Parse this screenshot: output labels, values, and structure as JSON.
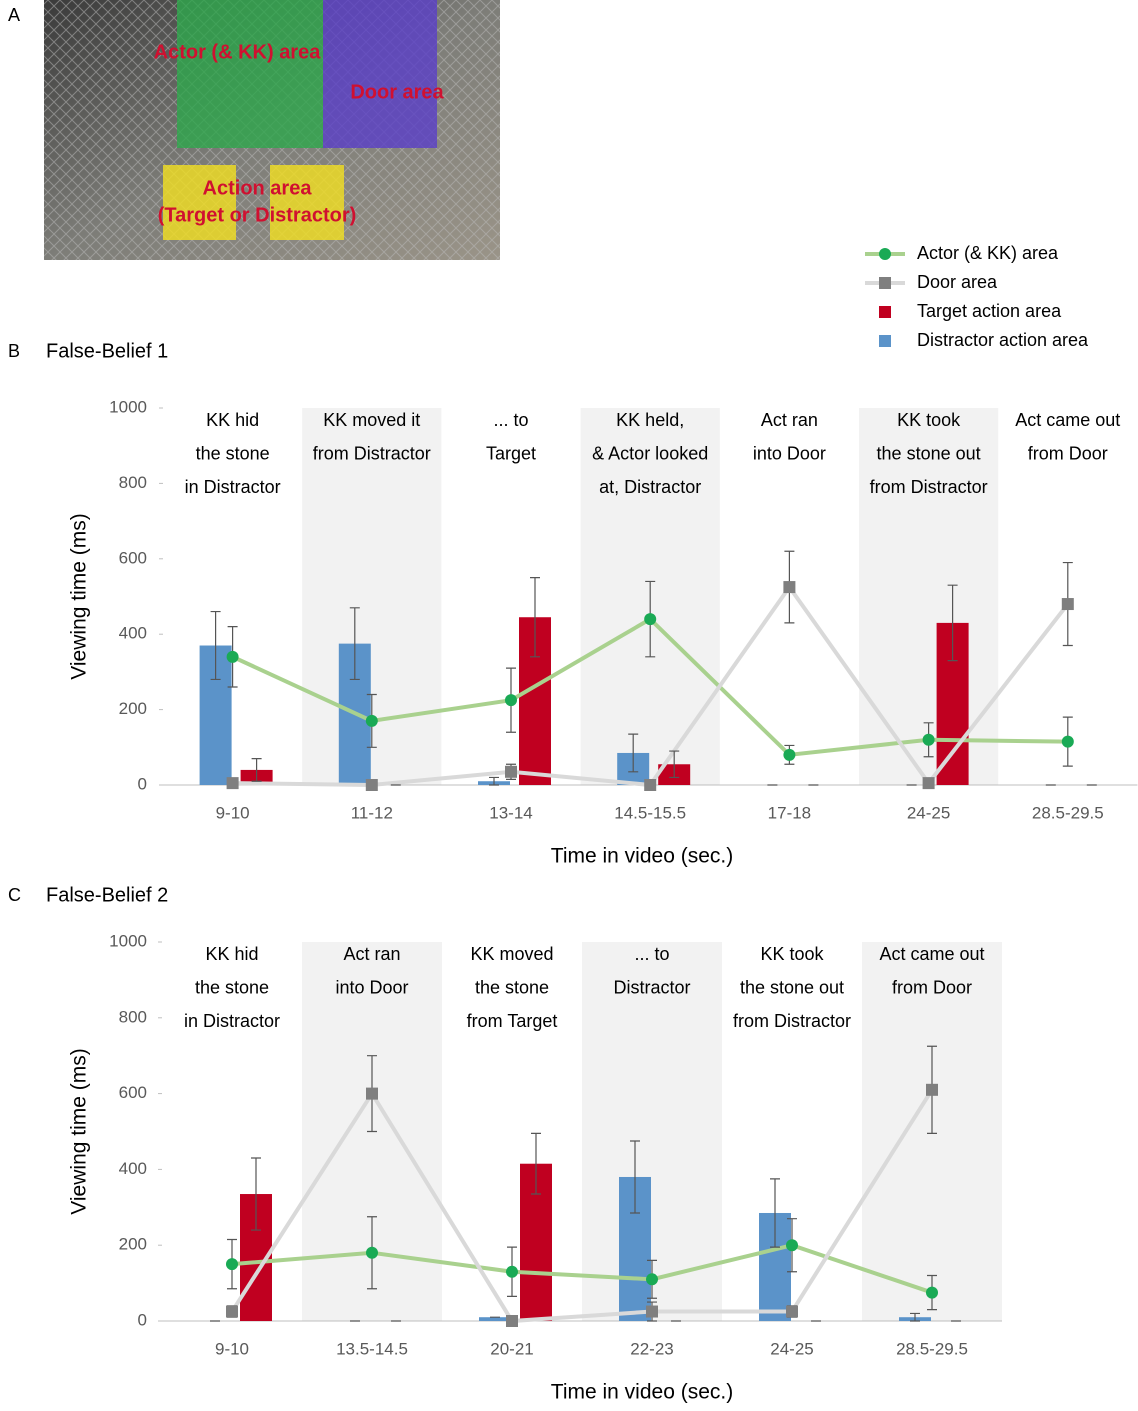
{
  "photo": {
    "panel_label": "A",
    "labels": [
      "Actor (& KK) area",
      "Door area",
      "Action area",
      "(Target or Distractor)"
    ]
  },
  "chart_data": [
    {
      "type": "combo",
      "panel_label": "B",
      "title": "False-Belief 1",
      "xlabel": "Time in video (sec.)",
      "ylabel": "Viewing time (ms)",
      "categories": [
        "9-10",
        "11-12",
        "13-14",
        "14.5-15.5",
        "17-18",
        "24-25",
        "28.5-29.5"
      ],
      "annotations": [
        [
          "KK hid",
          "the stone",
          "in Distractor"
        ],
        [
          "KK moved it",
          "from Distractor"
        ],
        [
          "... to",
          "Target"
        ],
        [
          "KK held,",
          "& Actor looked",
          "at, Distractor"
        ],
        [
          "Act ran",
          "into Door"
        ],
        [
          "KK took",
          "the stone out",
          "from Distractor"
        ],
        [
          "Act came out",
          "from Door"
        ]
      ],
      "shaded": [
        false,
        true,
        false,
        true,
        false,
        true,
        false
      ],
      "ylim": [
        0,
        1000
      ],
      "yticks": [
        0,
        200,
        400,
        600,
        800,
        1000
      ],
      "series": [
        {
          "name": "Actor (& KK) area",
          "type": "line",
          "marker": "circle",
          "color": "#1aaa55",
          "line_color": "#a9d18e",
          "values": [
            340,
            170,
            225,
            440,
            80,
            120,
            115
          ],
          "errors": [
            80,
            70,
            85,
            100,
            25,
            45,
            65
          ]
        },
        {
          "name": "Door area",
          "type": "line",
          "marker": "square",
          "color": "#7f7f7f",
          "line_color": "#d9d9d9",
          "values": [
            5,
            0,
            35,
            0,
            525,
            5,
            480
          ],
          "errors": [
            0,
            0,
            20,
            0,
            95,
            0,
            110
          ]
        },
        {
          "name": "Target action area",
          "type": "bar",
          "color": "#c00020",
          "values": [
            40,
            0,
            445,
            55,
            0,
            430,
            0
          ],
          "errors": [
            30,
            0,
            105,
            35,
            0,
            100,
            0
          ]
        },
        {
          "name": "Distractor action area",
          "type": "bar",
          "color": "#5b93c9",
          "values": [
            370,
            375,
            10,
            85,
            0,
            0,
            0
          ],
          "errors": [
            90,
            95,
            10,
            50,
            0,
            0,
            0
          ]
        }
      ]
    },
    {
      "type": "combo",
      "panel_label": "C",
      "title": "False-Belief 2",
      "xlabel": "Time in video (sec.)",
      "ylabel": "Viewing time (ms)",
      "categories": [
        "9-10",
        "13.5-14.5",
        "20-21",
        "22-23",
        "24-25",
        "28.5-29.5"
      ],
      "annotations": [
        [
          "KK hid",
          "the stone",
          "in Distractor"
        ],
        [
          "Act ran",
          "into Door"
        ],
        [
          "KK moved",
          "the stone",
          "from Target"
        ],
        [
          "... to",
          "Distractor"
        ],
        [
          "KK took",
          "the stone out",
          "from Distractor"
        ],
        [
          "Act came out",
          "from Door"
        ]
      ],
      "shaded": [
        false,
        true,
        false,
        true,
        false,
        true
      ],
      "ylim": [
        0,
        1000
      ],
      "yticks": [
        0,
        200,
        400,
        600,
        800,
        1000
      ],
      "series": [
        {
          "type": "line",
          "marker": "circle",
          "color": "#1aaa55",
          "line_color": "#a9d18e",
          "values": [
            150,
            180,
            130,
            110,
            200,
            75
          ],
          "errors": [
            65,
            95,
            65,
            50,
            70,
            45
          ]
        },
        {
          "type": "line",
          "marker": "square",
          "color": "#7f7f7f",
          "line_color": "#d9d9d9",
          "values": [
            25,
            600,
            0,
            25,
            25,
            610
          ],
          "errors": [
            15,
            100,
            0,
            25,
            15,
            115
          ]
        },
        {
          "type": "bar",
          "color": "#c00020",
          "values": [
            335,
            0,
            415,
            0,
            0,
            0
          ],
          "errors": [
            95,
            0,
            80,
            0,
            0,
            0
          ]
        },
        {
          "type": "bar",
          "color": "#5b93c9",
          "values": [
            0,
            0,
            10,
            380,
            285,
            10
          ],
          "errors": [
            0,
            0,
            0,
            95,
            90,
            10
          ]
        }
      ]
    }
  ]
}
